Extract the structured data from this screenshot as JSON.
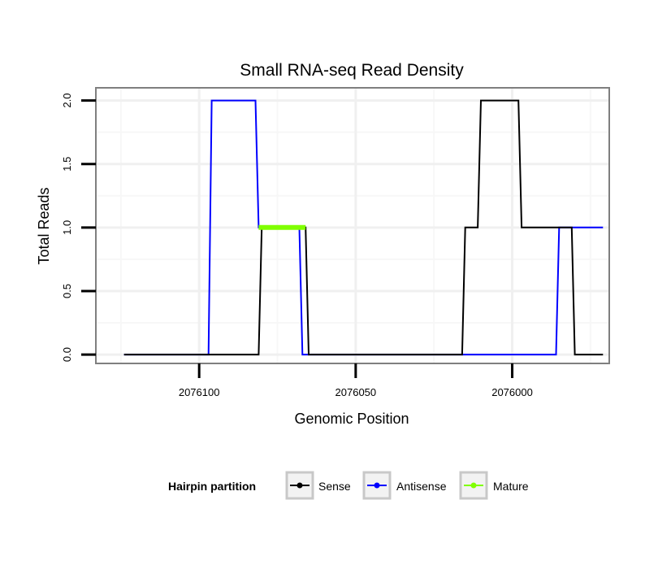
{
  "chart_data": {
    "type": "line",
    "title": "Small RNA-seq Read Density",
    "xlabel": "Genomic Position",
    "ylabel": "Total Reads",
    "x_reversed": true,
    "xlim": [
      2076133,
      2075969
    ],
    "ylim": [
      -0.07,
      2.1
    ],
    "x_ticks": [
      2076100,
      2076050,
      2076000
    ],
    "x_tick_labels": [
      "2076100",
      "2076050",
      "2076000"
    ],
    "y_ticks": [
      0.0,
      0.5,
      1.0,
      1.5,
      2.0
    ],
    "y_tick_labels": [
      "0.0",
      "0.5",
      "1.0",
      "1.5",
      "2.0"
    ],
    "grid": true,
    "legend": {
      "title": "Hairpin partition",
      "position": "bottom",
      "entries": [
        "Sense",
        "Antisense",
        "Mature"
      ]
    },
    "series": [
      {
        "name": "Antisense",
        "color": "#0000ff",
        "x": [
          2076124,
          2076097,
          2076096,
          2076082,
          2076081,
          2076068,
          2076067,
          2075986,
          2075985,
          2075971
        ],
        "y": [
          0,
          0,
          2,
          2,
          1,
          1,
          0,
          0,
          1,
          1
        ]
      },
      {
        "name": "Sense",
        "color": "#000000",
        "x": [
          2076124,
          2076081,
          2076080,
          2076066,
          2076065,
          2076016,
          2076015,
          2076011,
          2076010,
          2075998,
          2075997,
          2075981,
          2075980,
          2075971
        ],
        "y": [
          0,
          0,
          1,
          1,
          0,
          0,
          1,
          1,
          2,
          2,
          1,
          1,
          0,
          0
        ]
      },
      {
        "name": "Mature",
        "color": "#80ff00",
        "x": [
          2076081,
          2076066
        ],
        "y": [
          1,
          1
        ]
      }
    ]
  }
}
